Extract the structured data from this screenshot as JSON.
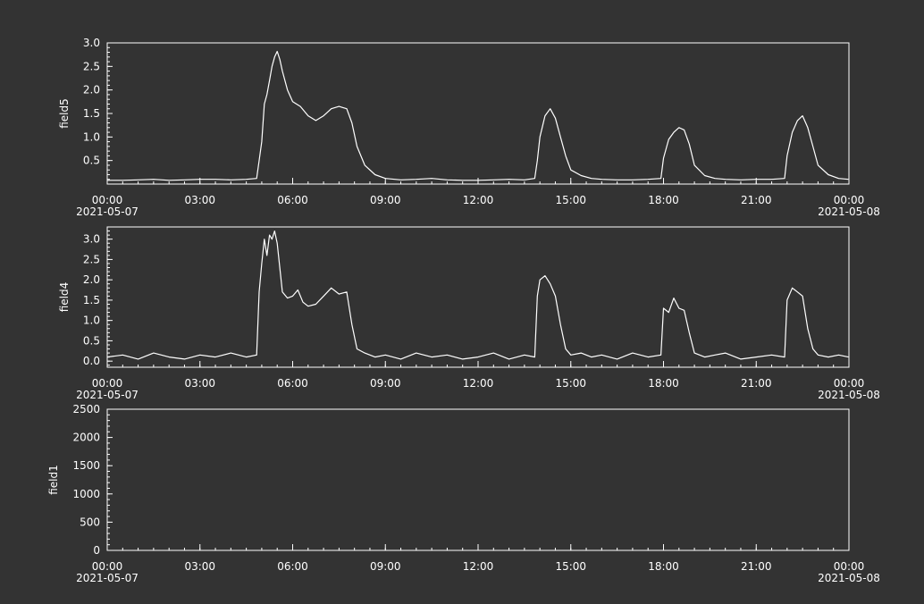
{
  "style": {
    "background": "#333333",
    "foreground": "#ffffff"
  },
  "chart_data": [
    {
      "type": "line",
      "ylabel": "field5",
      "ylim": [
        0,
        3.0
      ],
      "yticks": [
        0.5,
        1.0,
        1.5,
        2.0,
        2.5,
        3.0
      ],
      "ytick_labels": [
        "0.5",
        "1.0",
        "1.5",
        "2.0",
        "2.5",
        "3.0"
      ],
      "x_ticks": [
        "00:00",
        "03:00",
        "06:00",
        "09:00",
        "12:00",
        "15:00",
        "18:00",
        "21:00",
        "00:00"
      ],
      "x_start_date": "2021-05-07",
      "x_end_date": "2021-05-08",
      "grid": false,
      "series": [
        {
          "x": [
            "00:00",
            "00:30",
            "01:00",
            "01:30",
            "02:00",
            "02:30",
            "03:00",
            "03:30",
            "04:00",
            "04:30",
            "04:50",
            "04:55",
            "05:00",
            "05:05",
            "05:10",
            "05:15",
            "05:20",
            "05:25",
            "05:30",
            "05:35",
            "05:40",
            "05:50",
            "06:00",
            "06:15",
            "06:30",
            "06:45",
            "07:00",
            "07:15",
            "07:30",
            "07:45",
            "07:55",
            "08:05",
            "08:20",
            "08:40",
            "09:00",
            "09:30",
            "10:00",
            "10:30",
            "11:00",
            "11:30",
            "12:00",
            "12:30",
            "13:00",
            "13:30",
            "13:50",
            "13:55",
            "14:00",
            "14:10",
            "14:20",
            "14:30",
            "14:40",
            "14:50",
            "15:00",
            "15:20",
            "15:40",
            "16:00",
            "16:30",
            "17:00",
            "17:30",
            "17:55",
            "18:00",
            "18:10",
            "18:20",
            "18:30",
            "18:40",
            "18:50",
            "19:00",
            "19:20",
            "19:40",
            "20:00",
            "20:30",
            "21:00",
            "21:30",
            "21:55",
            "22:00",
            "22:10",
            "22:20",
            "22:30",
            "22:40",
            "22:50",
            "23:00",
            "23:20",
            "23:40",
            "23:59"
          ],
          "y": [
            0.08,
            0.08,
            0.09,
            0.1,
            0.08,
            0.09,
            0.1,
            0.1,
            0.09,
            0.1,
            0.12,
            0.5,
            0.9,
            1.7,
            1.9,
            2.2,
            2.5,
            2.7,
            2.82,
            2.65,
            2.4,
            2.0,
            1.75,
            1.65,
            1.45,
            1.35,
            1.45,
            1.6,
            1.65,
            1.6,
            1.3,
            0.8,
            0.4,
            0.2,
            0.12,
            0.09,
            0.1,
            0.12,
            0.09,
            0.08,
            0.08,
            0.09,
            0.1,
            0.09,
            0.12,
            0.5,
            1.0,
            1.45,
            1.6,
            1.4,
            1.0,
            0.6,
            0.3,
            0.18,
            0.12,
            0.1,
            0.09,
            0.09,
            0.1,
            0.12,
            0.55,
            0.95,
            1.1,
            1.2,
            1.15,
            0.85,
            0.4,
            0.18,
            0.12,
            0.1,
            0.09,
            0.1,
            0.1,
            0.12,
            0.6,
            1.1,
            1.35,
            1.45,
            1.2,
            0.8,
            0.4,
            0.2,
            0.12,
            0.1
          ]
        }
      ]
    },
    {
      "type": "line",
      "ylabel": "field4",
      "ylim": [
        -0.15,
        3.3
      ],
      "yticks": [
        0.0,
        0.5,
        1.0,
        1.5,
        2.0,
        2.5,
        3.0
      ],
      "ytick_labels": [
        "0.0",
        "0.5",
        "1.0",
        "1.5",
        "2.0",
        "2.5",
        "3.0"
      ],
      "x_ticks": [
        "00:00",
        "03:00",
        "06:00",
        "09:00",
        "12:00",
        "15:00",
        "18:00",
        "21:00",
        "00:00"
      ],
      "x_start_date": "2021-05-07",
      "x_end_date": "2021-05-08",
      "grid": false,
      "series": [
        {
          "x": [
            "00:00",
            "00:30",
            "01:00",
            "01:30",
            "02:00",
            "02:30",
            "03:00",
            "03:30",
            "04:00",
            "04:30",
            "04:50",
            "04:55",
            "05:00",
            "05:05",
            "05:10",
            "05:15",
            "05:20",
            "05:25",
            "05:30",
            "05:35",
            "05:40",
            "05:50",
            "06:00",
            "06:10",
            "06:20",
            "06:30",
            "06:45",
            "07:00",
            "07:15",
            "07:30",
            "07:45",
            "07:55",
            "08:05",
            "08:20",
            "08:40",
            "09:00",
            "09:30",
            "10:00",
            "10:30",
            "11:00",
            "11:30",
            "12:00",
            "12:30",
            "13:00",
            "13:30",
            "13:50",
            "13:55",
            "14:00",
            "14:10",
            "14:20",
            "14:30",
            "14:40",
            "14:50",
            "15:00",
            "15:20",
            "15:40",
            "16:00",
            "16:30",
            "17:00",
            "17:30",
            "17:55",
            "18:00",
            "18:10",
            "18:20",
            "18:30",
            "18:40",
            "18:50",
            "19:00",
            "19:20",
            "19:40",
            "20:00",
            "20:30",
            "21:00",
            "21:30",
            "21:55",
            "22:00",
            "22:10",
            "22:20",
            "22:30",
            "22:40",
            "22:50",
            "23:00",
            "23:20",
            "23:40",
            "23:59"
          ],
          "y": [
            0.1,
            0.15,
            0.05,
            0.2,
            0.1,
            0.05,
            0.15,
            0.1,
            0.2,
            0.1,
            0.15,
            1.7,
            2.4,
            3.0,
            2.6,
            3.1,
            3.0,
            3.2,
            2.9,
            2.3,
            1.7,
            1.55,
            1.6,
            1.75,
            1.45,
            1.35,
            1.4,
            1.6,
            1.8,
            1.65,
            1.7,
            0.9,
            0.3,
            0.2,
            0.1,
            0.15,
            0.05,
            0.2,
            0.1,
            0.15,
            0.05,
            0.1,
            0.2,
            0.05,
            0.15,
            0.1,
            1.6,
            2.0,
            2.1,
            1.9,
            1.6,
            0.9,
            0.3,
            0.15,
            0.2,
            0.1,
            0.15,
            0.05,
            0.2,
            0.1,
            0.15,
            1.3,
            1.2,
            1.55,
            1.3,
            1.25,
            0.7,
            0.2,
            0.1,
            0.15,
            0.2,
            0.05,
            0.1,
            0.15,
            0.1,
            1.5,
            1.8,
            1.7,
            1.6,
            0.8,
            0.3,
            0.15,
            0.1,
            0.15,
            0.1
          ]
        }
      ]
    },
    {
      "type": "line",
      "ylabel": "field1",
      "ylim": [
        0,
        2500
      ],
      "yticks": [
        0,
        500,
        1000,
        1500,
        2000,
        2500
      ],
      "ytick_labels": [
        "0",
        "500",
        "1000",
        "1500",
        "2000",
        "2500"
      ],
      "x_ticks": [
        "00:00",
        "03:00",
        "06:00",
        "09:00",
        "12:00",
        "15:00",
        "18:00",
        "21:00",
        "00:00"
      ],
      "x_start_date": "2021-05-07",
      "x_end_date": "2021-05-08",
      "grid": false,
      "series": []
    }
  ]
}
